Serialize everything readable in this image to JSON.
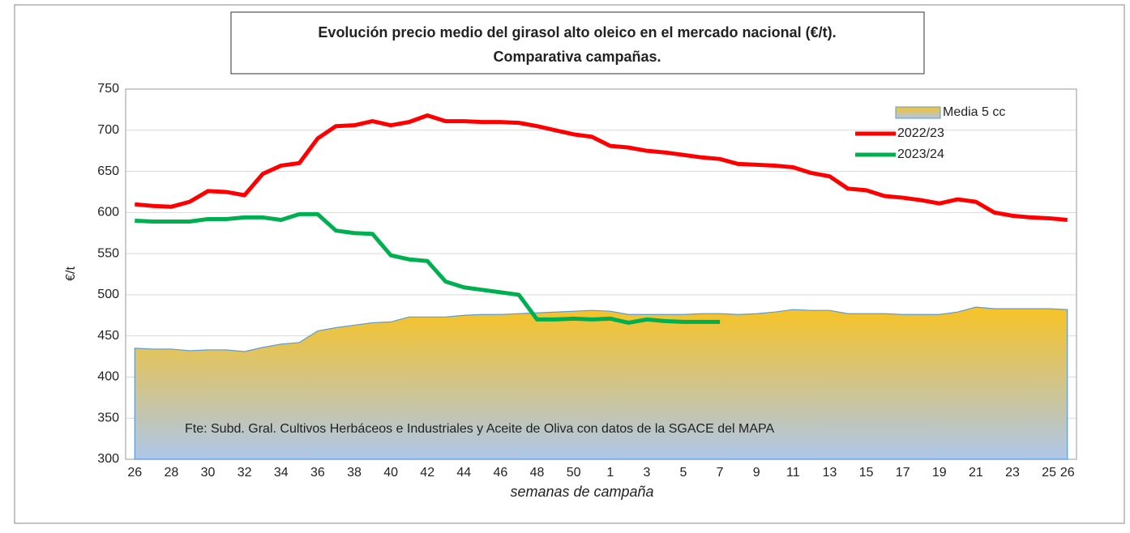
{
  "chart_data": {
    "type": "line",
    "title": [
      "Evolución precio medio del girasol alto oleico en el mercado nacional (€/t).",
      "Comparativa campañas."
    ],
    "xlabel": "semanas de campaña",
    "ylabel": "€/t",
    "annotations": [
      "Fte: Subd. Gral. Cultivos Herbáceos e Industriales y Aceite de Oliva con datos de la SGACE del MAPA"
    ],
    "categories": [
      "26",
      null,
      "28",
      null,
      "30",
      null,
      "32",
      null,
      "34",
      null,
      "36",
      null,
      "38",
      null,
      "40",
      null,
      "42",
      null,
      "44",
      null,
      "46",
      null,
      "48",
      null,
      "50",
      null,
      "1",
      null,
      "3",
      null,
      "5",
      null,
      "7",
      null,
      "9",
      null,
      "11",
      null,
      "13",
      null,
      "15",
      null,
      "17",
      null,
      "19",
      null,
      "21",
      null,
      "23",
      null,
      "25",
      "26"
    ],
    "ylim": [
      300,
      750
    ],
    "yticks": [
      300,
      350,
      400,
      450,
      500,
      550,
      600,
      650,
      700,
      750
    ],
    "grid": true,
    "legend": "top-right",
    "series": [
      {
        "name": "Media 5 cc",
        "kind": "area",
        "color": "#5b9bd5",
        "gradient": [
          "#f7c325",
          "#aec6ea"
        ],
        "values": [
          435,
          434,
          434,
          432,
          433,
          433,
          431,
          436,
          440,
          442,
          456,
          460,
          463,
          466,
          467,
          473,
          473,
          473,
          475,
          476,
          476,
          477,
          478,
          479,
          480,
          481,
          480,
          476,
          476,
          476,
          476,
          477,
          477,
          476,
          477,
          479,
          482,
          481,
          481,
          477,
          477,
          477,
          476,
          476,
          476,
          479,
          485,
          483,
          483,
          483,
          483,
          482
        ]
      },
      {
        "name": "2022/23",
        "color": "#ff0000",
        "values": [
          610,
          608,
          607,
          613,
          626,
          625,
          621,
          647,
          657,
          660,
          690,
          705,
          706,
          711,
          706,
          710,
          718,
          711,
          711,
          710,
          710,
          709,
          705,
          700,
          695,
          692,
          681,
          679,
          675,
          673,
          670,
          667,
          665,
          659,
          658,
          657,
          655,
          648,
          644,
          629,
          627,
          620,
          618,
          615,
          611,
          616,
          613,
          600,
          596,
          594,
          593,
          591
        ]
      },
      {
        "name": "2023/24",
        "color": "#00b050",
        "values": [
          590,
          589,
          589,
          589,
          592,
          592,
          594,
          594,
          591,
          598,
          598,
          578,
          575,
          574,
          548,
          543,
          541,
          516,
          509,
          506,
          503,
          500,
          470,
          470,
          471,
          470,
          471,
          466,
          470,
          468,
          467,
          467,
          467,
          null,
          null,
          null,
          null,
          null,
          null,
          null,
          null,
          null,
          null,
          null,
          null,
          null,
          null,
          null,
          null,
          null,
          null,
          null
        ]
      }
    ]
  }
}
